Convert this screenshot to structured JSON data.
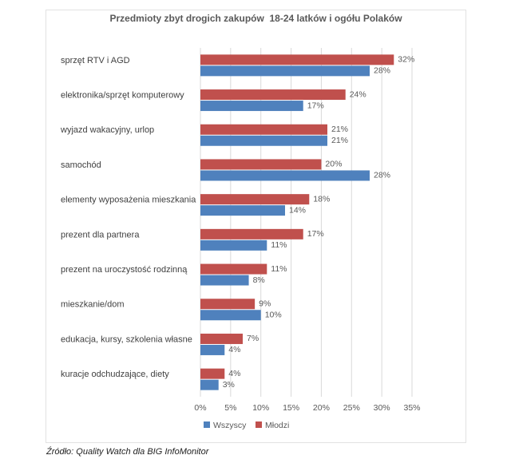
{
  "chart_data": {
    "type": "bar",
    "orientation": "horizontal",
    "title": "Przedmioty zbyt drogich zakupów  18-24 latków i ogółu Polaków",
    "categories": [
      "sprzęt RTV i AGD",
      "elektronika/sprzęt komputerowy",
      "wyjazd wakacyjny, urlop",
      "samochód",
      "elementy wyposażenia mieszkania",
      "prezent dla partnera",
      "prezent na uroczystość rodzinną",
      "mieszkanie/dom",
      "edukacja, kursy, szkolenia własne",
      "kuracje odchudzające, diety"
    ],
    "series": [
      {
        "name": "Młodzi",
        "color": "#c0504d",
        "values": [
          32,
          24,
          21,
          20,
          18,
          17,
          11,
          9,
          7,
          4
        ],
        "labels": [
          "32%",
          "24%",
          "21%",
          "20%",
          "18%",
          "17%",
          "11%",
          "9%",
          "7%",
          "4%"
        ]
      },
      {
        "name": "Wszyscy",
        "color": "#4f81bd",
        "values": [
          28,
          17,
          21,
          28,
          14,
          11,
          8,
          10,
          4,
          3
        ],
        "labels": [
          "28%",
          "17%",
          "21%",
          "28%",
          "14%",
          "11%",
          "8%",
          "10%",
          "4%",
          "3%"
        ]
      }
    ],
    "xlim": [
      0,
      35
    ],
    "x_ticks": [
      "0%",
      "5%",
      "10%",
      "15%",
      "20%",
      "25%",
      "30%",
      "35%"
    ],
    "grid": true,
    "legend": {
      "position": "bottom",
      "items": [
        "Wszyscy",
        "Młodzi"
      ]
    }
  },
  "source": "Źródło: Quality Watch dla BIG InfoMonitor"
}
